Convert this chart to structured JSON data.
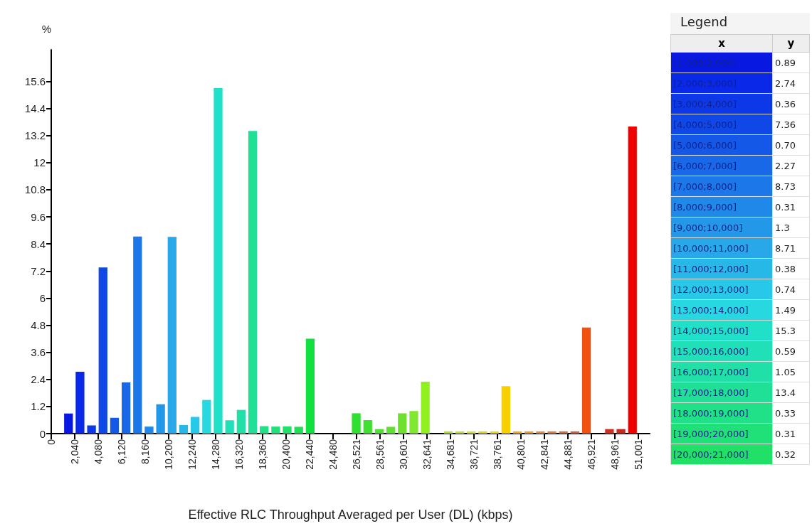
{
  "chart_data": [
    {
      "type": "histogram",
      "xlabel": "Effective RLC Throughput Averaged per User (DL) (kbps)",
      "ylabel": "%",
      "bins": [
        0,
        1000,
        2000,
        3000,
        4000,
        5000,
        6000,
        7000,
        8000,
        9000,
        10000,
        11000,
        12000,
        13000,
        14000,
        15000,
        16000,
        17000,
        18000,
        19000,
        20000,
        21000,
        22000,
        23000,
        24000,
        25000,
        26000,
        27000,
        28000,
        29000,
        30000,
        31000,
        32000,
        33000,
        34000,
        35000,
        36000,
        37000,
        38000,
        39000,
        40000,
        41000,
        42000,
        43000,
        44000,
        45000,
        46000,
        47000,
        48000,
        49000,
        50000,
        51000
      ],
      "values": [
        0,
        0.89,
        2.74,
        0.36,
        7.36,
        0.7,
        2.27,
        8.73,
        0.31,
        1.3,
        8.71,
        0.38,
        0.74,
        1.49,
        15.3,
        0.59,
        1.05,
        13.4,
        0.33,
        0.31,
        0.32,
        0.3,
        4.2,
        0,
        0,
        0,
        0.9,
        0.6,
        0.2,
        0.3,
        0.9,
        1.0,
        2.3,
        0,
        0.1,
        0.1,
        0.1,
        0.1,
        0.1,
        2.1,
        0.1,
        0.1,
        0.1,
        0.1,
        0.1,
        0.1,
        4.7,
        0,
        0.2,
        0.2,
        13.6
      ],
      "colors": [
        "#0010c0",
        "#0818e0",
        "#0a28e8",
        "#0c38e8",
        "#1048e8",
        "#1458e8",
        "#1868e8",
        "#1c78e8",
        "#2088e8",
        "#2498e8",
        "#28a8e8",
        "#28b8e8",
        "#28c8e8",
        "#28d8e0",
        "#20e0c8",
        "#20e0b8",
        "#20e0a8",
        "#20e098",
        "#20e088",
        "#20e078",
        "#20e068",
        "#20e058",
        "#10e040",
        "#18e038",
        "#20e030",
        "#28e030",
        "#30e030",
        "#40e030",
        "#50e030",
        "#60e030",
        "#70e030",
        "#80e830",
        "#90f020",
        "#a8e828",
        "#b8e030",
        "#c8e030",
        "#d8e030",
        "#e0d828",
        "#e8d820",
        "#f8d000",
        "#f0b020",
        "#e8a030",
        "#e09040",
        "#d88040",
        "#d07040",
        "#d06040",
        "#f05010",
        "#e84018",
        "#d03020",
        "#c82820",
        "#f00000"
      ],
      "xlim": [
        0,
        52000
      ],
      "xticks": [
        0,
        {
          "value": 2040,
          "label": "2,040"
        },
        {
          "value": 4080,
          "label": "4,080"
        },
        {
          "value": 6120,
          "label": "6,120"
        },
        {
          "value": 8160,
          "label": "8,160"
        },
        {
          "value": 10200,
          "label": "10,200"
        },
        {
          "value": 12240,
          "label": "12,240"
        },
        {
          "value": 14280,
          "label": "14,280"
        },
        {
          "value": 16320,
          "label": "16,320"
        },
        {
          "value": 18360,
          "label": "18,360"
        },
        {
          "value": 20400,
          "label": "20,400"
        },
        {
          "value": 22440,
          "label": "22,440"
        },
        {
          "value": 24480,
          "label": "24,480"
        },
        {
          "value": 26521,
          "label": "26,521"
        },
        {
          "value": 28561,
          "label": "28,561"
        },
        {
          "value": 30601,
          "label": "30,601"
        },
        {
          "value": 32641,
          "label": "32,641"
        },
        {
          "value": 34681,
          "label": "34,681"
        },
        {
          "value": 36721,
          "label": "36,721"
        },
        {
          "value": 38761,
          "label": "38,761"
        },
        {
          "value": 40801,
          "label": "40,801"
        },
        {
          "value": 42841,
          "label": "42,841"
        },
        {
          "value": 44881,
          "label": "44,881"
        },
        {
          "value": 46921,
          "label": "46,921"
        },
        {
          "value": 48961,
          "label": "48,961"
        },
        {
          "value": 51001,
          "label": "51,001"
        }
      ],
      "ylim": [
        0,
        17
      ],
      "yticks": [
        0,
        1.2,
        2.4,
        3.6,
        4.8,
        6,
        7.2,
        8.4,
        9.6,
        10.8,
        12,
        13.2,
        14.4,
        15.6
      ],
      "grid": false
    },
    {
      "type": "other",
      "legend_title": "Legend",
      "xlabel": "x",
      "ylabel": "y",
      "categories": [
        "[1,000;2,000]",
        "[2,000;3,000]",
        "[3,000;4,000]",
        "[4,000;5,000]",
        "[5,000;6,000]",
        "[6,000;7,000]",
        "[7,000;8,000]",
        "[8,000;9,000]",
        "[9,000;10,000]",
        "[10,000;11,000]",
        "[11,000;12,000]",
        "[12,000;13,000]",
        "[13,000;14,000]",
        "[14,000;15,000]",
        "[15,000;16,000]",
        "[16,000;17,000]",
        "[17,000;18,000]",
        "[18,000;19,000]",
        "[19,000;20,000]",
        "[20,000;21,000]"
      ],
      "value_labels": [
        "0.89",
        "2.74",
        "0.36",
        "7.36",
        "0.70",
        "2.27",
        "8.73",
        "0.31",
        "1.3",
        "8.71",
        "0.38",
        "0.74",
        "1.49",
        "15.3",
        "0.59",
        "1.05",
        "13.4",
        "0.33",
        "0.31",
        "0.32"
      ],
      "colors": [
        "#0818e0",
        "#0a28e8",
        "#0c38e8",
        "#1048e8",
        "#1458e8",
        "#1868e8",
        "#1c78e8",
        "#2088e8",
        "#2498e8",
        "#28a8e8",
        "#28b8e8",
        "#28c8e8",
        "#28d8e0",
        "#20e0c8",
        "#20e0b8",
        "#20e0a8",
        "#20e098",
        "#20e088",
        "#20e078",
        "#20e068"
      ]
    }
  ]
}
